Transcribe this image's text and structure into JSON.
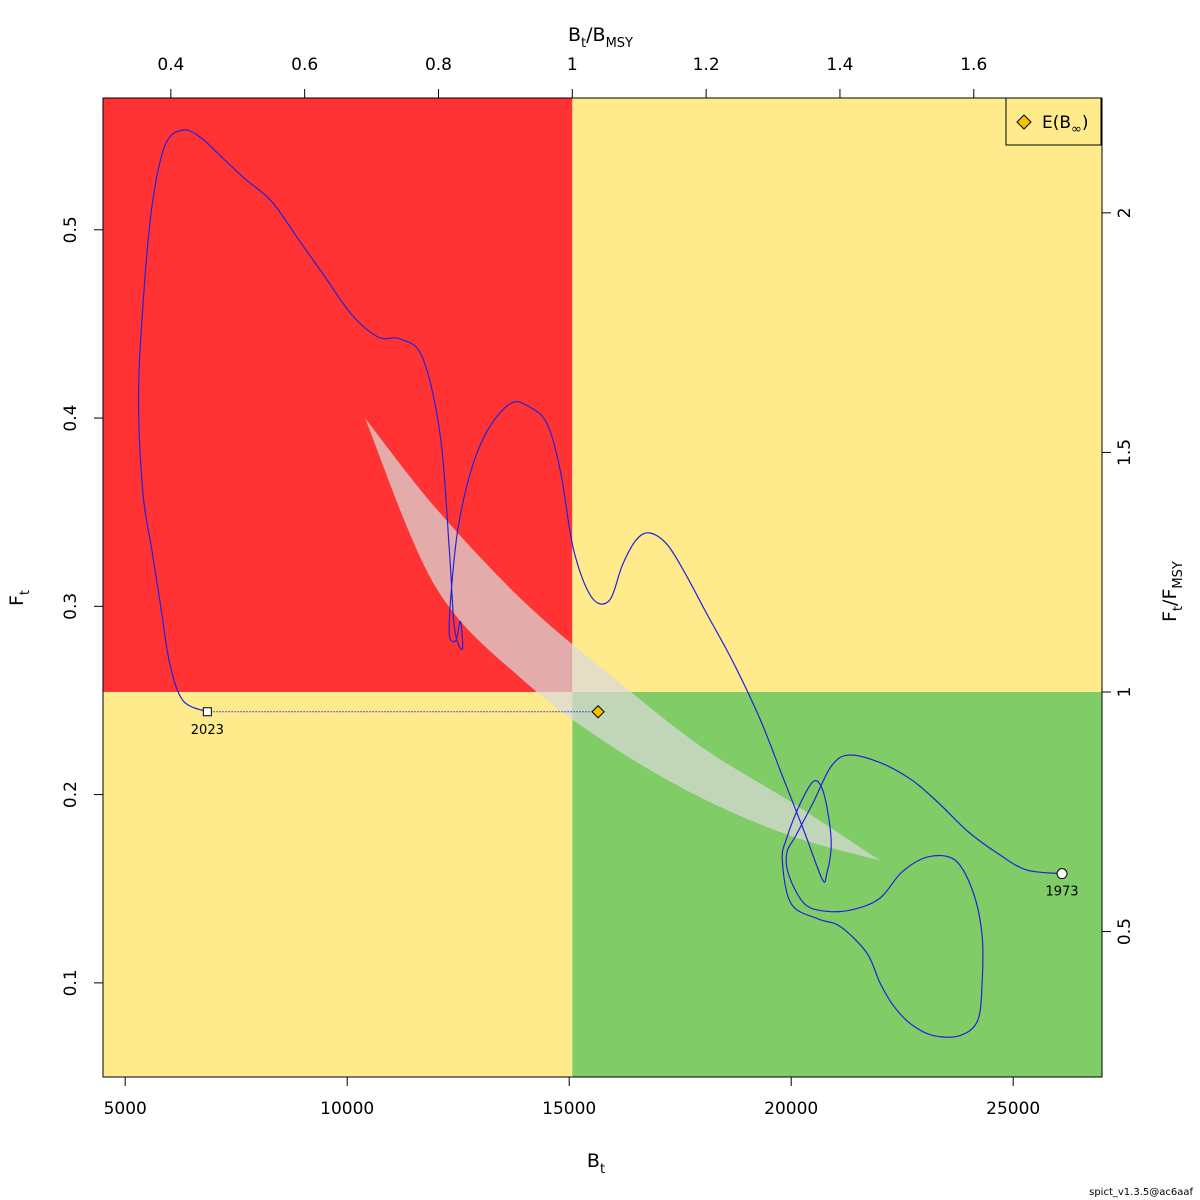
{
  "chart_data": {
    "type": "scatter",
    "x_axis": {
      "main": "B",
      "sub": "t",
      "ticks": [
        5000,
        10000,
        15000,
        20000,
        25000
      ],
      "range": [
        4500,
        27000
      ]
    },
    "y_axis": {
      "main": "F",
      "sub": "t",
      "ticks": [
        0.1,
        0.2,
        0.3,
        0.4,
        0.5
      ],
      "range": [
        0.05,
        0.57
      ]
    },
    "top_axis": {
      "label_main": "B",
      "label_sub1": "t",
      "label_sep": "/B",
      "label_sub2": "MSY",
      "ticks": [
        0.4,
        0.6,
        0.8,
        1,
        1.2,
        1.4,
        1.6
      ]
    },
    "right_axis": {
      "label_main": "F",
      "label_sub1": "t",
      "label_sep": "/F",
      "label_sub2": "MSY",
      "ticks": [
        0.5,
        1,
        1.5,
        2
      ]
    },
    "reference": {
      "Bmsy": 15070,
      "Fmsy": 0.2545
    },
    "colors": {
      "red": "#ff3333",
      "yellow": "#ffeb8c",
      "green": "#80cc66",
      "path": "#2222dd",
      "ellipse": "#d9d9d9",
      "diamond": "#f5c200"
    },
    "trajectory": [
      [
        26100,
        0.158
      ],
      [
        25300,
        0.16
      ],
      [
        24700,
        0.168
      ],
      [
        24000,
        0.18
      ],
      [
        23300,
        0.196
      ],
      [
        22700,
        0.208
      ],
      [
        22000,
        0.217
      ],
      [
        21300,
        0.221
      ],
      [
        20900,
        0.215
      ],
      [
        20500,
        0.196
      ],
      [
        20100,
        0.178
      ],
      [
        19900,
        0.169
      ],
      [
        19950,
        0.157
      ],
      [
        20300,
        0.142
      ],
      [
        20800,
        0.138
      ],
      [
        21400,
        0.139
      ],
      [
        22000,
        0.145
      ],
      [
        22500,
        0.159
      ],
      [
        23100,
        0.167
      ],
      [
        23700,
        0.165
      ],
      [
        24100,
        0.148
      ],
      [
        24300,
        0.125
      ],
      [
        24300,
        0.1
      ],
      [
        24200,
        0.08
      ],
      [
        23800,
        0.072
      ],
      [
        23200,
        0.072
      ],
      [
        22700,
        0.078
      ],
      [
        22300,
        0.088
      ],
      [
        22000,
        0.1
      ],
      [
        21700,
        0.116
      ],
      [
        21100,
        0.13
      ],
      [
        20600,
        0.134
      ],
      [
        20000,
        0.142
      ],
      [
        19800,
        0.165
      ],
      [
        19900,
        0.177
      ],
      [
        20200,
        0.195
      ],
      [
        20500,
        0.207
      ],
      [
        20700,
        0.203
      ],
      [
        20850,
        0.187
      ],
      [
        20900,
        0.172
      ],
      [
        20800,
        0.158
      ],
      [
        20700,
        0.155
      ],
      [
        20300,
        0.18
      ],
      [
        19800,
        0.21
      ],
      [
        19300,
        0.24
      ],
      [
        18700,
        0.27
      ],
      [
        18100,
        0.296
      ],
      [
        17600,
        0.318
      ],
      [
        17200,
        0.333
      ],
      [
        16800,
        0.339
      ],
      [
        16500,
        0.335
      ],
      [
        16200,
        0.322
      ],
      [
        15900,
        0.303
      ],
      [
        15500,
        0.305
      ],
      [
        15100,
        0.33
      ],
      [
        14800,
        0.372
      ],
      [
        14500,
        0.397
      ],
      [
        14100,
        0.406
      ],
      [
        13700,
        0.408
      ],
      [
        13200,
        0.395
      ],
      [
        12800,
        0.373
      ],
      [
        12500,
        0.342
      ],
      [
        12350,
        0.31
      ],
      [
        12300,
        0.285
      ],
      [
        12450,
        0.282
      ],
      [
        12550,
        0.292
      ],
      [
        12600,
        0.278
      ],
      [
        12500,
        0.28
      ],
      [
        12400,
        0.292
      ],
      [
        12300,
        0.33
      ],
      [
        12100,
        0.39
      ],
      [
        11700,
        0.432
      ],
      [
        11200,
        0.442
      ],
      [
        10700,
        0.443
      ],
      [
        10100,
        0.455
      ],
      [
        9500,
        0.475
      ],
      [
        8900,
        0.495
      ],
      [
        8300,
        0.515
      ],
      [
        7700,
        0.527
      ],
      [
        7200,
        0.538
      ],
      [
        6700,
        0.549
      ],
      [
        6300,
        0.553
      ],
      [
        5900,
        0.545
      ],
      [
        5600,
        0.512
      ],
      [
        5400,
        0.46
      ],
      [
        5300,
        0.41
      ],
      [
        5400,
        0.36
      ],
      [
        5600,
        0.33
      ],
      [
        5800,
        0.3
      ],
      [
        6000,
        0.27
      ],
      [
        6300,
        0.25
      ],
      [
        6850,
        0.244
      ]
    ],
    "ellipse": {
      "top_left": [
        10400,
        0.4
      ],
      "bottom_right": [
        22000,
        0.165
      ],
      "upper_edge": [
        [
          10400,
          0.4
        ],
        [
          12000,
          0.352
        ],
        [
          14000,
          0.302
        ],
        [
          16000,
          0.262
        ],
        [
          18000,
          0.225
        ],
        [
          20000,
          0.196
        ],
        [
          22000,
          0.165
        ]
      ],
      "lower_edge": [
        [
          22000,
          0.165
        ],
        [
          20000,
          0.178
        ],
        [
          18000,
          0.198
        ],
        [
          16000,
          0.225
        ],
        [
          14000,
          0.26
        ],
        [
          12000,
          0.31
        ],
        [
          10400,
          0.4
        ]
      ]
    },
    "first_point": {
      "x": 26100,
      "y": 0.158,
      "label": "1973"
    },
    "last_point": {
      "x": 6850,
      "y": 0.244,
      "label": "2023"
    },
    "projection": {
      "x": 15650,
      "y": 0.244
    },
    "legend": {
      "text_main": "E(B",
      "text_sub": "∞",
      "text_end": ")",
      "position": "top-right"
    },
    "footer": "spict_v1.3.5@ac6aaf"
  }
}
